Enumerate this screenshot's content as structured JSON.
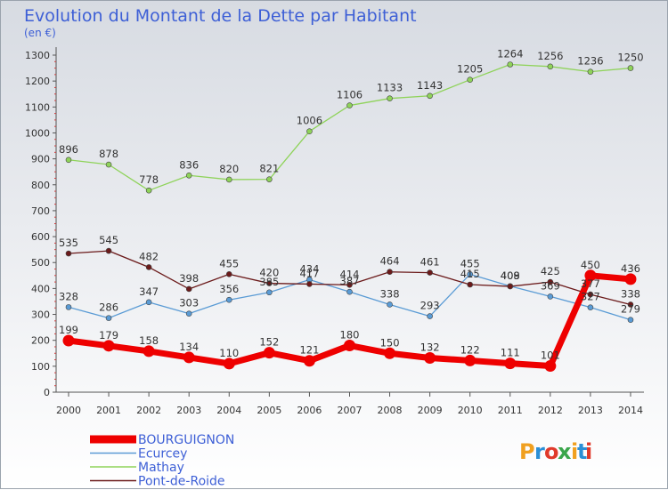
{
  "header": {
    "title": "Evolution du Montant de la Dette par Habitant",
    "subtitle": "(en €)"
  },
  "logo": {
    "text": "Proxiti",
    "colors": [
      "#f0a020",
      "#2b8fd6",
      "#e03a2b",
      "#3aa64b",
      "#f0a020",
      "#2b8fd6",
      "#e03a2b"
    ]
  },
  "chart_data": {
    "type": "line",
    "title": "Evolution du Montant de la Dette par Habitant",
    "subtitle": "(en €)",
    "xlabel": "",
    "ylabel": "",
    "categories": [
      "2000",
      "2001",
      "2002",
      "2003",
      "2004",
      "2005",
      "2006",
      "2007",
      "2008",
      "2009",
      "2010",
      "2011",
      "2012",
      "2013",
      "2014"
    ],
    "ylim": [
      0,
      1300
    ],
    "yticks": [
      0,
      100,
      200,
      300,
      400,
      500,
      600,
      700,
      800,
      900,
      1000,
      1100,
      1200,
      1300
    ],
    "grid": false,
    "legend_position": "bottom-left",
    "series": [
      {
        "name": "BOURGUIGNON",
        "color": "#ee0000",
        "values": [
          199,
          179,
          158,
          134,
          110,
          152,
          121,
          180,
          150,
          132,
          122,
          111,
          101,
          450,
          436
        ]
      },
      {
        "name": "Ecurcey",
        "color": "#5a9bd5",
        "values": [
          328,
          286,
          347,
          303,
          356,
          385,
          434,
          387,
          338,
          293,
          455,
          409,
          369,
          327,
          279
        ]
      },
      {
        "name": "Mathay",
        "color": "#8fd35a",
        "values": [
          896,
          878,
          778,
          836,
          820,
          821,
          1006,
          1106,
          1133,
          1143,
          1205,
          1264,
          1256,
          1236,
          1250
        ]
      },
      {
        "name": "Pont-de-Roide",
        "color": "#6b1a1a",
        "values": [
          535,
          545,
          482,
          398,
          455,
          420,
          417,
          414,
          464,
          461,
          415,
          408,
          425,
          377,
          338
        ]
      }
    ]
  }
}
